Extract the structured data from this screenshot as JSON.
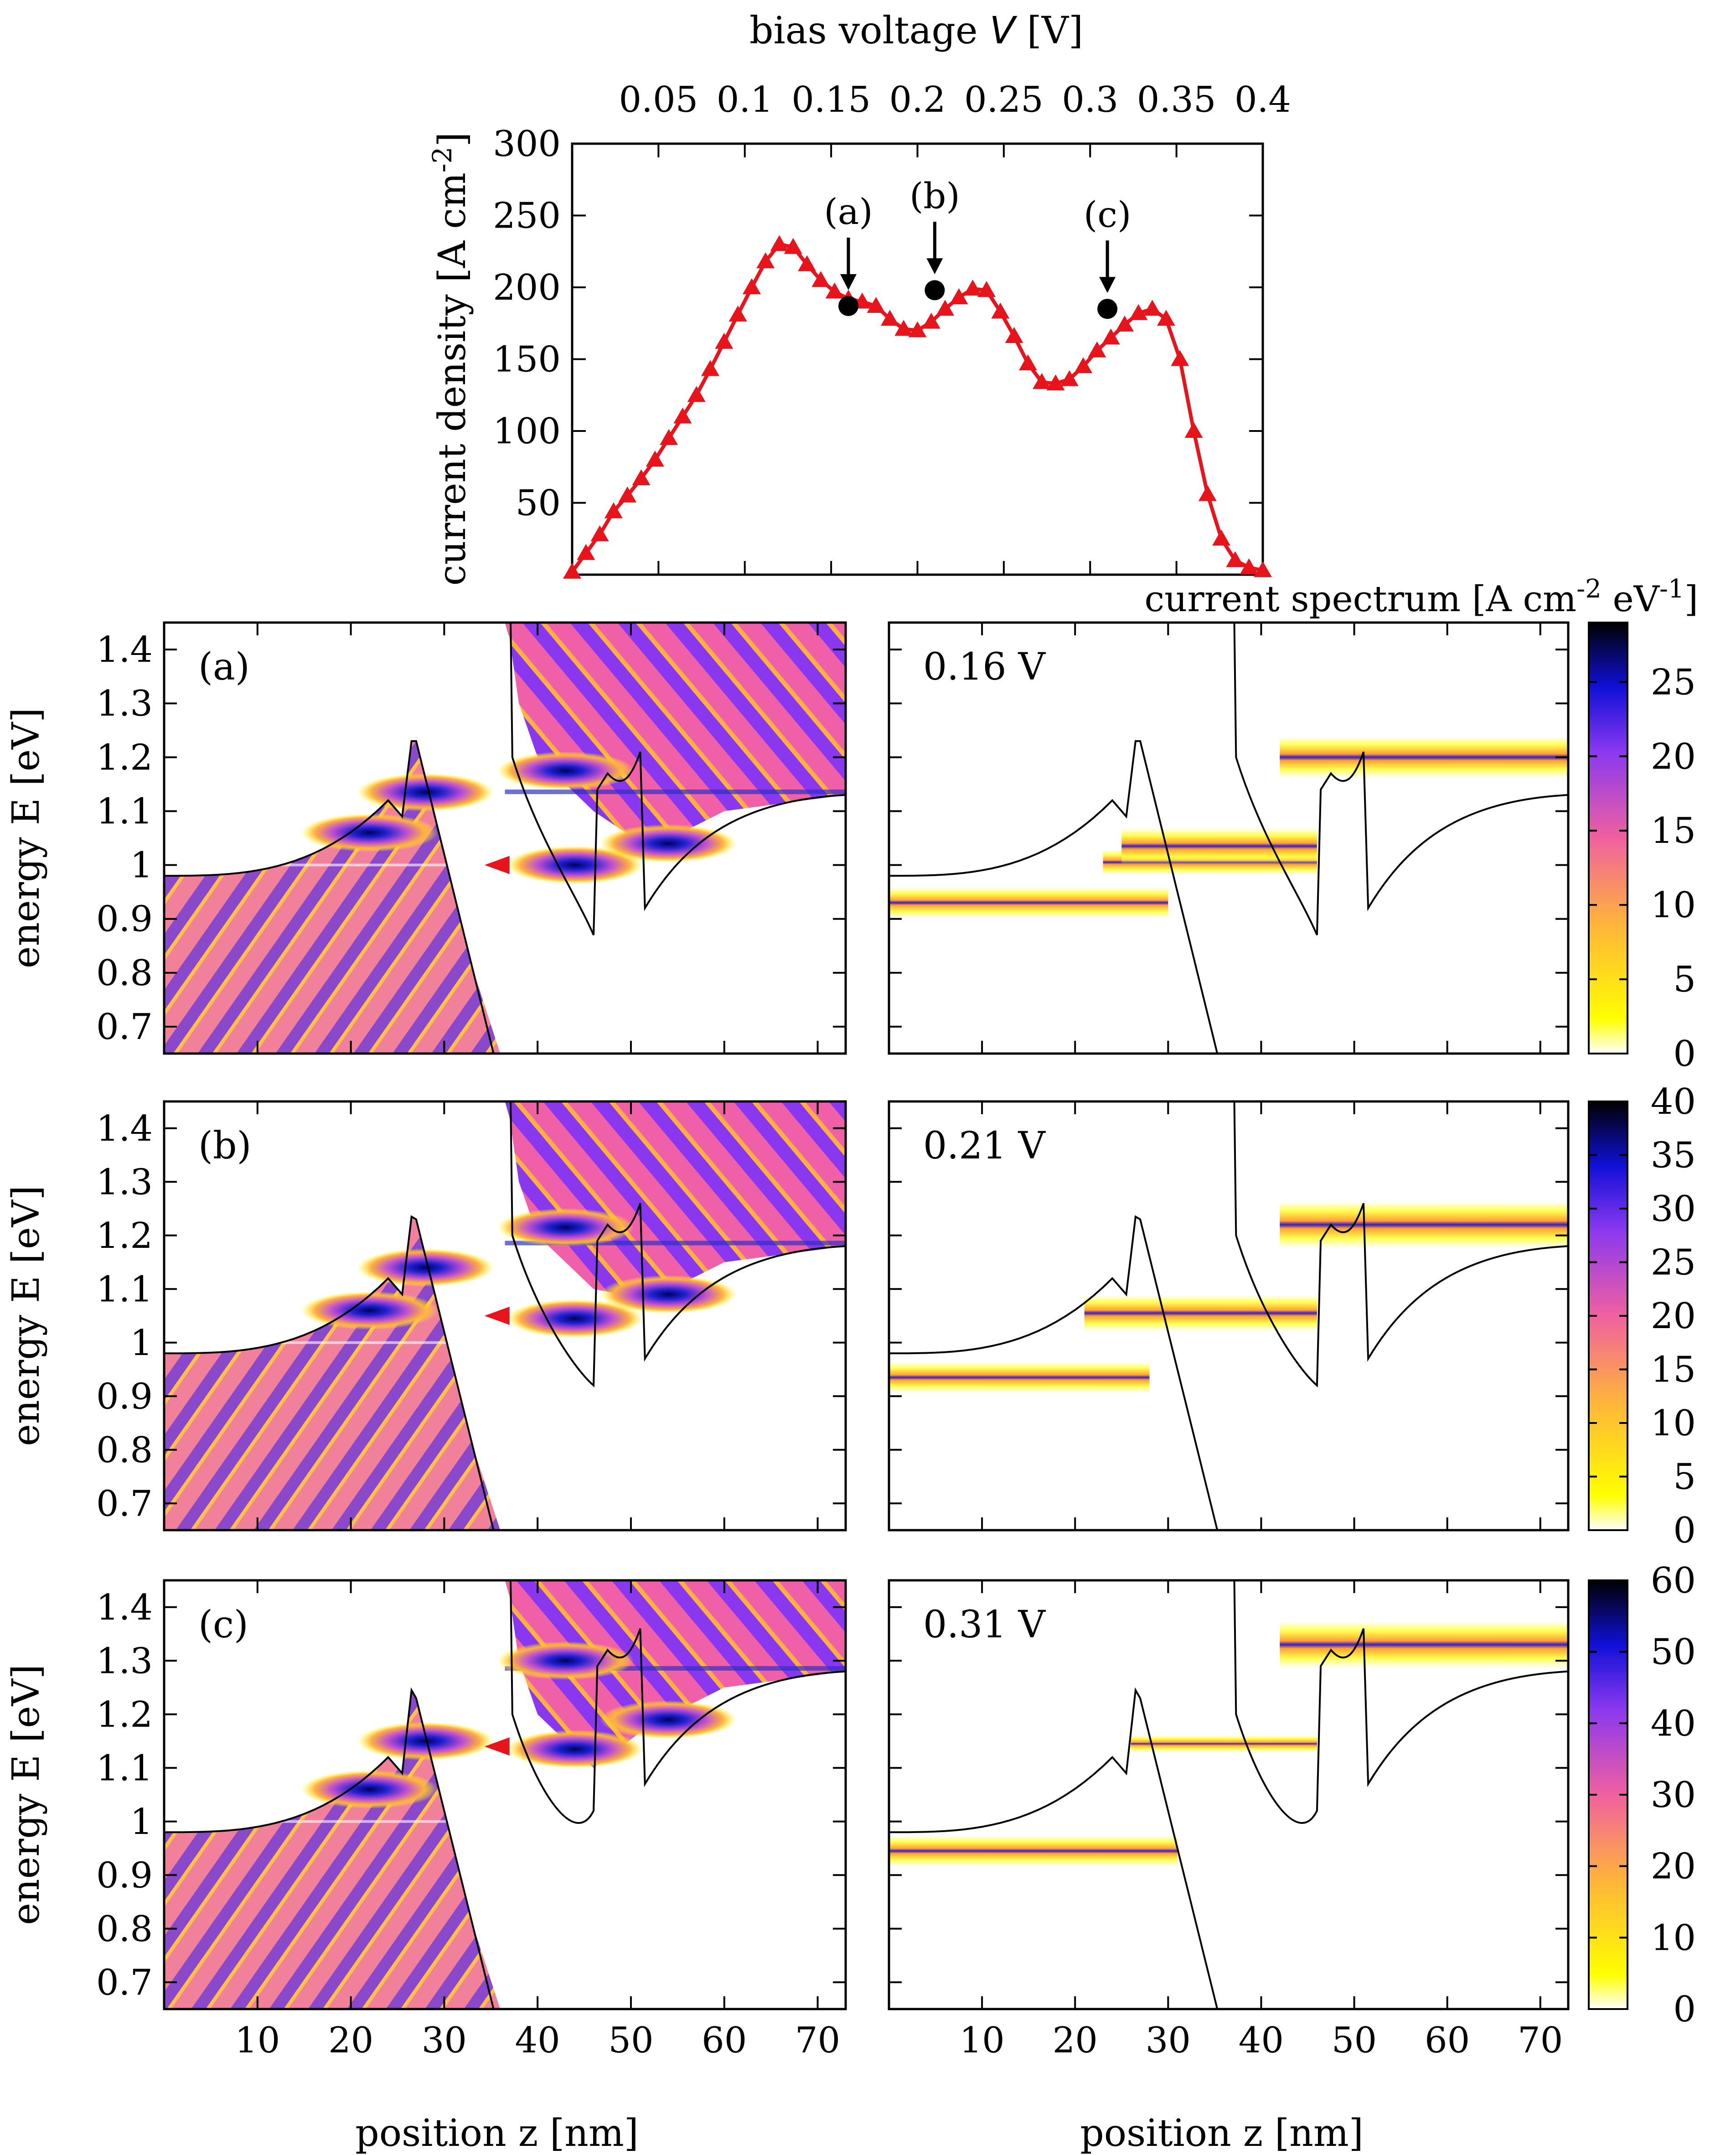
{
  "chart_data": [
    {
      "id": "top",
      "type": "line",
      "title": "",
      "xlabel_prefix": "bias voltage ",
      "xlabel_italic": "V",
      "xlabel_suffix": " [V]",
      "ylabel": "current density  [A cm",
      "ylabel_sup": "-2",
      "ylabel_end": "]",
      "xlim": [
        0.0,
        0.4
      ],
      "ylim": [
        0,
        300
      ],
      "xticks": [
        "0.05",
        "0.1",
        "0.15",
        "0.2",
        "0.25",
        "0.3",
        "0.35",
        "0.4"
      ],
      "xtick_values": [
        0.05,
        0.1,
        0.15,
        0.2,
        0.25,
        0.3,
        0.35,
        0.4
      ],
      "yticks": [
        "50",
        "100",
        "150",
        "200",
        "250",
        "300"
      ],
      "ytick_values": [
        50,
        100,
        150,
        200,
        250,
        300
      ],
      "series": [
        {
          "name": "current density",
          "color": "#e8141c",
          "marker": "triangle",
          "x": [
            0.0,
            0.008,
            0.016,
            0.024,
            0.032,
            0.04,
            0.048,
            0.056,
            0.064,
            0.072,
            0.08,
            0.088,
            0.096,
            0.104,
            0.112,
            0.12,
            0.128,
            0.136,
            0.144,
            0.152,
            0.16,
            0.168,
            0.176,
            0.184,
            0.192,
            0.2,
            0.208,
            0.216,
            0.224,
            0.232,
            0.24,
            0.248,
            0.256,
            0.264,
            0.272,
            0.28,
            0.288,
            0.296,
            0.304,
            0.312,
            0.32,
            0.328,
            0.336,
            0.344,
            0.352,
            0.36,
            0.368,
            0.376,
            0.384,
            0.392,
            0.4
          ],
          "y": [
            2,
            15,
            28,
            44,
            55,
            67,
            80,
            95,
            110,
            125,
            143,
            162,
            181,
            200,
            218,
            230,
            228,
            216,
            205,
            197,
            192,
            190,
            187,
            178,
            171,
            170,
            176,
            185,
            193,
            199,
            198,
            183,
            166,
            147,
            134,
            133,
            136,
            145,
            156,
            165,
            174,
            182,
            185,
            178,
            150,
            100,
            56,
            25,
            10,
            5,
            3
          ]
        }
      ],
      "markers": [
        {
          "label": "(a)",
          "x": 0.16,
          "y": 187
        },
        {
          "label": "(b)",
          "x": 0.21,
          "y": 198
        },
        {
          "label": "(c)",
          "x": 0.31,
          "y": 185
        }
      ]
    },
    {
      "id": "heatmaps",
      "type": "heatmap",
      "xlabel": "position z [nm]",
      "ylabel": "energy E [eV]",
      "colorbar_title": "current spectrum [A cm",
      "colorbar_title_sup1": "-2",
      "colorbar_title_mid": " eV",
      "colorbar_title_sup2": "-1",
      "colorbar_title_end": "]",
      "xlim": [
        0,
        73
      ],
      "ylim": [
        0.65,
        1.45
      ],
      "xticks": [
        "10",
        "20",
        "30",
        "40",
        "50",
        "60",
        "70"
      ],
      "xtick_values": [
        10,
        20,
        30,
        40,
        50,
        60,
        70
      ],
      "yticks": [
        "0.7",
        "0.8",
        "0.9",
        "1",
        "1.1",
        "1.2",
        "1.3",
        "1.4"
      ],
      "ytick_values": [
        0.7,
        0.8,
        0.9,
        1.0,
        1.1,
        1.2,
        1.3,
        1.4
      ],
      "rows": [
        {
          "left_label": "(a)",
          "right_label": "0.16 V",
          "colorbar_ticks": [
            "0",
            "5",
            "10",
            "15",
            "20",
            "25"
          ],
          "colorbar_values": [
            0,
            5,
            10,
            15,
            20,
            25
          ],
          "colorbar_max": 29,
          "band_base": 0.98,
          "arrow_energy": 1.0,
          "right_plateau": 1.13,
          "well_levels": [
            {
              "z": 22,
              "E": 1.06
            },
            {
              "z": 28,
              "E": 1.135
            },
            {
              "z": 44,
              "E": 1.0
            },
            {
              "z": 54,
              "E": 1.04
            },
            {
              "z": 43,
              "E": 1.175
            }
          ],
          "right_lines": [
            {
              "z0": 0,
              "z1": 30,
              "E": 0.93,
              "w": 0.04
            },
            {
              "z0": 23,
              "z1": 46,
              "E": 1.005,
              "w": 0.03
            },
            {
              "z0": 25,
              "z1": 46,
              "E": 1.035,
              "w": 0.05
            },
            {
              "z0": 42,
              "z1": 73,
              "E": 1.2,
              "w": 0.06
            }
          ]
        },
        {
          "left_label": "(b)",
          "right_label": "0.21 V",
          "colorbar_ticks": [
            "0",
            "5",
            "10",
            "15",
            "20",
            "25",
            "30",
            "35",
            "40"
          ],
          "colorbar_values": [
            0,
            5,
            10,
            15,
            20,
            25,
            30,
            35,
            40
          ],
          "colorbar_max": 40,
          "band_base": 0.98,
          "arrow_energy": 1.05,
          "right_plateau": 1.18,
          "well_levels": [
            {
              "z": 22,
              "E": 1.06
            },
            {
              "z": 28,
              "E": 1.14
            },
            {
              "z": 44,
              "E": 1.045
            },
            {
              "z": 54,
              "E": 1.09
            },
            {
              "z": 43,
              "E": 1.215
            }
          ],
          "right_lines": [
            {
              "z0": 0,
              "z1": 28,
              "E": 0.935,
              "w": 0.04
            },
            {
              "z0": 21,
              "z1": 46,
              "E": 1.055,
              "w": 0.05
            },
            {
              "z0": 42,
              "z1": 73,
              "E": 1.22,
              "w": 0.07
            }
          ]
        },
        {
          "left_label": "(c)",
          "right_label": "0.31 V",
          "colorbar_ticks": [
            "0",
            "10",
            "20",
            "30",
            "40",
            "50",
            "60"
          ],
          "colorbar_values": [
            0,
            10,
            20,
            30,
            40,
            50,
            60
          ],
          "colorbar_max": 60,
          "band_base": 0.98,
          "arrow_energy": 1.14,
          "right_plateau": 1.28,
          "well_levels": [
            {
              "z": 22,
              "E": 1.06
            },
            {
              "z": 28,
              "E": 1.15
            },
            {
              "z": 44,
              "E": 1.135
            },
            {
              "z": 54,
              "E": 1.19
            },
            {
              "z": 43,
              "E": 1.3
            }
          ],
          "right_lines": [
            {
              "z0": 0,
              "z1": 31,
              "E": 0.945,
              "w": 0.04
            },
            {
              "z0": 26,
              "z1": 46,
              "E": 1.145,
              "w": 0.015
            },
            {
              "z0": 42,
              "z1": 73,
              "E": 1.33,
              "w": 0.07
            }
          ]
        }
      ]
    }
  ]
}
